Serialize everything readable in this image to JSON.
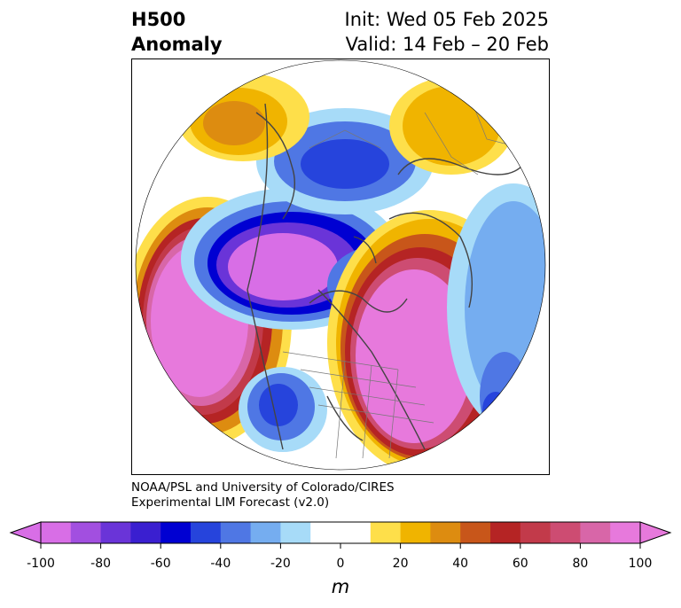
{
  "title": {
    "left_line1": "H500",
    "left_line2": "Anomaly",
    "right_line1": "Init: Wed 05 Feb 2025",
    "right_line2": "Valid: 14 Feb – 20 Feb"
  },
  "credit": {
    "line1": "NOAA/PSL and University of Colorado/CIRES",
    "line2": "Experimental LIM Forecast (v2.0)"
  },
  "colorbar": {
    "unit": "m",
    "tick_labels": [
      "-100",
      "-80",
      "-60",
      "-40",
      "-20",
      "0",
      "20",
      "40",
      "60",
      "80",
      "100"
    ],
    "bins": [
      {
        "from": -100,
        "to": -90,
        "color": "#d86ee6"
      },
      {
        "from": -90,
        "to": -80,
        "color": "#a24fe0"
      },
      {
        "from": -80,
        "to": -70,
        "color": "#6a34d8"
      },
      {
        "from": -70,
        "to": -60,
        "color": "#3a1fd0"
      },
      {
        "from": -60,
        "to": -50,
        "color": "#0000d2"
      },
      {
        "from": -50,
        "to": -40,
        "color": "#2644dc"
      },
      {
        "from": -40,
        "to": -30,
        "color": "#4f77e4"
      },
      {
        "from": -30,
        "to": -20,
        "color": "#75adf0"
      },
      {
        "from": -20,
        "to": -10,
        "color": "#a7dbf8"
      },
      {
        "from": -10,
        "to": 0,
        "color": "#ffffff"
      },
      {
        "from": 0,
        "to": 10,
        "color": "#ffffff"
      },
      {
        "from": 10,
        "to": 20,
        "color": "#fedf4a"
      },
      {
        "from": 20,
        "to": 30,
        "color": "#f0b400"
      },
      {
        "from": 30,
        "to": 40,
        "color": "#dd8c10"
      },
      {
        "from": 40,
        "to": 50,
        "color": "#c8561a"
      },
      {
        "from": 50,
        "to": 60,
        "color": "#b52424"
      },
      {
        "from": 60,
        "to": 70,
        "color": "#c23a4a"
      },
      {
        "from": 70,
        "to": 80,
        "color": "#cd4c72"
      },
      {
        "from": 80,
        "to": 90,
        "color": "#d866a8"
      },
      {
        "from": 90,
        "to": 100,
        "color": "#e779dc"
      }
    ],
    "under_color": "#d86ee6",
    "over_color": "#e779dc"
  },
  "map": {
    "projection": "north polar stereographic",
    "anomaly_centers": [
      {
        "region": "North Pacific",
        "sign": "positive",
        "peak": 100
      },
      {
        "region": "Eastern North America / North Atlantic",
        "sign": "positive",
        "peak": 100
      },
      {
        "region": "Greenland / Canadian Arctic",
        "sign": "negative",
        "peak": -100
      },
      {
        "region": "Alaska / Yukon",
        "sign": "negative",
        "peak": -100
      },
      {
        "region": "Western United States",
        "sign": "negative",
        "peak": -60
      },
      {
        "region": "Northern Siberia",
        "sign": "negative",
        "peak": -50
      },
      {
        "region": "Central Asia",
        "sign": "positive",
        "peak": 35
      },
      {
        "region": "Scandinavia / Barents",
        "sign": "positive",
        "peak": 60
      }
    ]
  }
}
